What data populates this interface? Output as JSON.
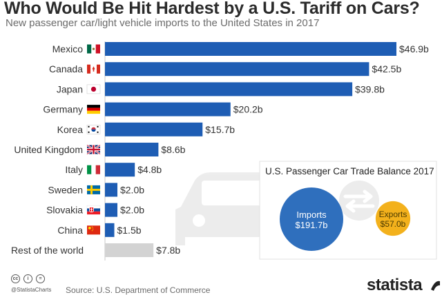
{
  "chart_data": {
    "type": "bar",
    "orientation": "horizontal",
    "title": "Who Would Be Hit Hardest by a U.S. Tariff on Cars?",
    "subtitle": "New passenger car/light vehicle imports to the United States in 2017",
    "categories": [
      "Mexico",
      "Canada",
      "Japan",
      "Germany",
      "Korea",
      "United Kingdom",
      "Italy",
      "Sweden",
      "Slovakia",
      "China",
      "Rest of the world"
    ],
    "values": [
      46.9,
      42.5,
      39.8,
      20.2,
      15.7,
      8.6,
      4.8,
      2.0,
      2.0,
      1.5,
      7.8
    ],
    "value_labels": [
      "$46.9b",
      "$42.5b",
      "$39.8b",
      "$20.2b",
      "$15.7b",
      "$8.6b",
      "$4.8b",
      "$2.0b",
      "$2.0b",
      "$1.5b",
      "$7.8b"
    ],
    "flags": [
      "mexico-flag",
      "canada-flag",
      "japan-flag",
      "germany-flag",
      "korea-flag",
      "uk-flag",
      "italy-flag",
      "sweden-flag",
      "slovakia-flag",
      "china-flag",
      ""
    ],
    "unit": "billion USD",
    "xlim": [
      0,
      50
    ],
    "bar_color": "#1e5db4",
    "rest_color": "#d3d3d3",
    "inset": {
      "title": "U.S. Passenger Car Trade Balance 2017",
      "imports_label": "Imports",
      "imports_value_label": "$191.7b",
      "imports_value": 191.7,
      "imports_color": "#2f6fbd",
      "exports_label": "Exports",
      "exports_value_label": "$57.0b",
      "exports_value": 57.0,
      "exports_color": "#f3b11c"
    }
  },
  "footer": {
    "handle": "@StatistaCharts",
    "source": "Source: U.S. Department of Commerce",
    "brand": "statista",
    "cc_icons": [
      "cc",
      "i",
      "="
    ]
  }
}
